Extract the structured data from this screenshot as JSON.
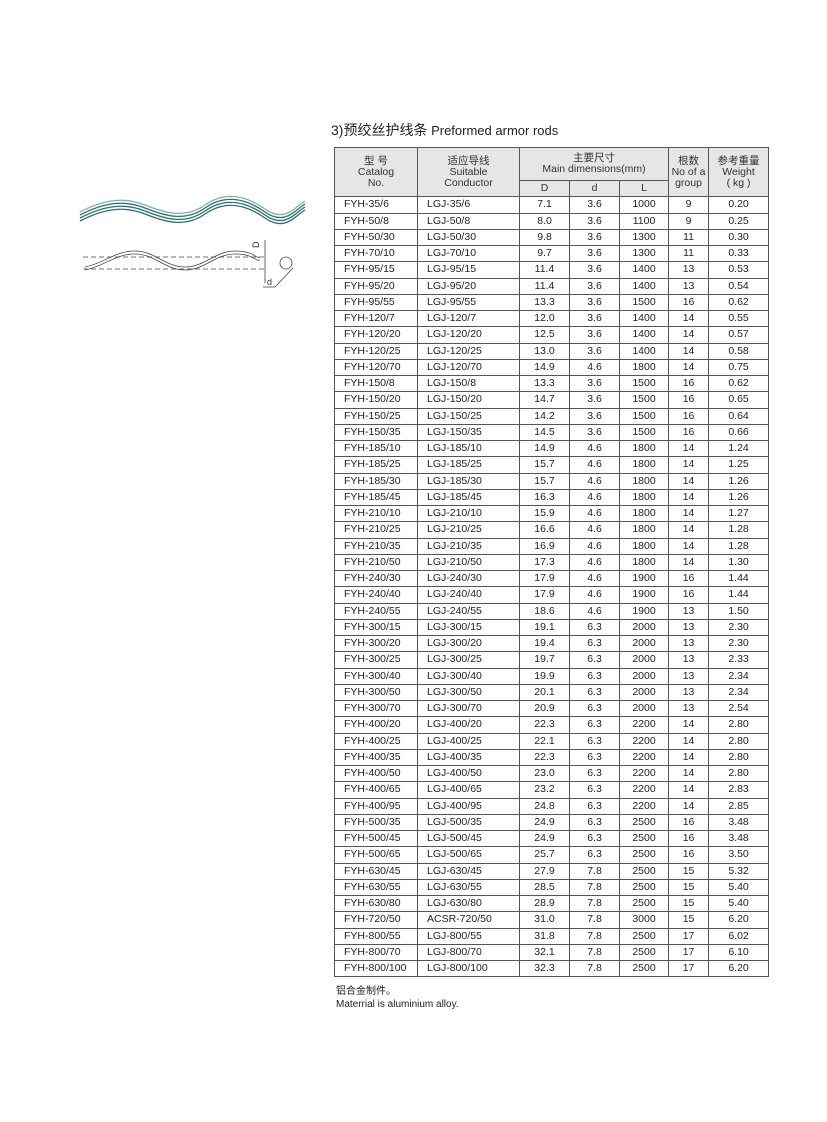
{
  "title": {
    "cn": "3)预绞丝护线条",
    "en": "Preformed armor rods"
  },
  "headers": {
    "catalog": [
      "型 号",
      "Catalog",
      "No."
    ],
    "conductor": [
      "适应导线",
      "Suitable",
      "Conductor"
    ],
    "dims": [
      "主要尺寸",
      "Main dimensions(mm)"
    ],
    "dim_cols": [
      "D",
      "d",
      "L"
    ],
    "count": [
      "根数",
      "No of a",
      "group"
    ],
    "weight": [
      "参考重量",
      "Weight",
      "( kg )"
    ]
  },
  "rows": [
    [
      "FYH-35/6",
      "LGJ-35/6",
      "7.1",
      "3.6",
      "1000",
      "9",
      "0.20"
    ],
    [
      "FYH-50/8",
      "LGJ-50/8",
      "8.0",
      "3.6",
      "1100",
      "9",
      "0.25"
    ],
    [
      "FYH-50/30",
      "LGJ-50/30",
      "9.8",
      "3.6",
      "1300",
      "11",
      "0.30"
    ],
    [
      "FYH-70/10",
      "LGJ-70/10",
      "9.7",
      "3.6",
      "1300",
      "11",
      "0.33"
    ],
    [
      "FYH-95/15",
      "LGJ-95/15",
      "11.4",
      "3.6",
      "1400",
      "13",
      "0.53"
    ],
    [
      "FYH-95/20",
      "LGJ-95/20",
      "11.4",
      "3.6",
      "1400",
      "13",
      "0.54"
    ],
    [
      "FYH-95/55",
      "LGJ-95/55",
      "13.3",
      "3.6",
      "1500",
      "16",
      "0.62"
    ],
    [
      "FYH-120/7",
      "LGJ-120/7",
      "12.0",
      "3.6",
      "1400",
      "14",
      "0.55"
    ],
    [
      "FYH-120/20",
      "LGJ-120/20",
      "12.5",
      "3.6",
      "1400",
      "14",
      "0.57"
    ],
    [
      "FYH-120/25",
      "LGJ-120/25",
      "13.0",
      "3.6",
      "1400",
      "14",
      "0.58"
    ],
    [
      "FYH-120/70",
      "LGJ-120/70",
      "14.9",
      "4.6",
      "1800",
      "14",
      "0.75"
    ],
    [
      "FYH-150/8",
      "LGJ-150/8",
      "13.3",
      "3.6",
      "1500",
      "16",
      "0.62"
    ],
    [
      "FYH-150/20",
      "LGJ-150/20",
      "14.7",
      "3.6",
      "1500",
      "16",
      "0.65"
    ],
    [
      "FYH-150/25",
      "LGJ-150/25",
      "14.2",
      "3.6",
      "1500",
      "16",
      "0.64"
    ],
    [
      "FYH-150/35",
      "LGJ-150/35",
      "14.5",
      "3.6",
      "1500",
      "16",
      "0.66"
    ],
    [
      "FYH-185/10",
      "LGJ-185/10",
      "14.9",
      "4.6",
      "1800",
      "14",
      "1.24"
    ],
    [
      "FYH-185/25",
      "LGJ-185/25",
      "15.7",
      "4.6",
      "1800",
      "14",
      "1.25"
    ],
    [
      "FYH-185/30",
      "LGJ-185/30",
      "15.7",
      "4.6",
      "1800",
      "14",
      "1.26"
    ],
    [
      "FYH-185/45",
      "LGJ-185/45",
      "16.3",
      "4.6",
      "1800",
      "14",
      "1.26"
    ],
    [
      "FYH-210/10",
      "LGJ-210/10",
      "15.9",
      "4.6",
      "1800",
      "14",
      "1.27"
    ],
    [
      "FYH-210/25",
      "LGJ-210/25",
      "16.6",
      "4.6",
      "1800",
      "14",
      "1.28"
    ],
    [
      "FYH-210/35",
      "LGJ-210/35",
      "16.9",
      "4.6",
      "1800",
      "14",
      "1.28"
    ],
    [
      "FYH-210/50",
      "LGJ-210/50",
      "17.3",
      "4.6",
      "1800",
      "14",
      "1.30"
    ],
    [
      "FYH-240/30",
      "LGJ-240/30",
      "17.9",
      "4.6",
      "1900",
      "16",
      "1.44"
    ],
    [
      "FYH-240/40",
      "LGJ-240/40",
      "17.9",
      "4.6",
      "1900",
      "16",
      "1.44"
    ],
    [
      "FYH-240/55",
      "LGJ-240/55",
      "18.6",
      "4.6",
      "1900",
      "13",
      "1.50"
    ],
    [
      "FYH-300/15",
      "LGJ-300/15",
      "19.1",
      "6.3",
      "2000",
      "13",
      "2.30"
    ],
    [
      "FYH-300/20",
      "LGJ-300/20",
      "19.4",
      "6.3",
      "2000",
      "13",
      "2.30"
    ],
    [
      "FYH-300/25",
      "LGJ-300/25",
      "19.7",
      "6.3",
      "2000",
      "13",
      "2.33"
    ],
    [
      "FYH-300/40",
      "LGJ-300/40",
      "19.9",
      "6.3",
      "2000",
      "13",
      "2.34"
    ],
    [
      "FYH-300/50",
      "LGJ-300/50",
      "20.1",
      "6.3",
      "2000",
      "13",
      "2.34"
    ],
    [
      "FYH-300/70",
      "LGJ-300/70",
      "20.9",
      "6.3",
      "2000",
      "13",
      "2.54"
    ],
    [
      "FYH-400/20",
      "LGJ-400/20",
      "22.3",
      "6.3",
      "2200",
      "14",
      "2.80"
    ],
    [
      "FYH-400/25",
      "LGJ-400/25",
      "22.1",
      "6.3",
      "2200",
      "14",
      "2.80"
    ],
    [
      "FYH-400/35",
      "LGJ-400/35",
      "22.3",
      "6.3",
      "2200",
      "14",
      "2.80"
    ],
    [
      "FYH-400/50",
      "LGJ-400/50",
      "23.0",
      "6.3",
      "2200",
      "14",
      "2.80"
    ],
    [
      "FYH-400/65",
      "LGJ-400/65",
      "23.2",
      "6.3",
      "2200",
      "14",
      "2.83"
    ],
    [
      "FYH-400/95",
      "LGJ-400/95",
      "24.8",
      "6.3",
      "2200",
      "14",
      "2.85"
    ],
    [
      "FYH-500/35",
      "LGJ-500/35",
      "24.9",
      "6.3",
      "2500",
      "16",
      "3.48"
    ],
    [
      "FYH-500/45",
      "LGJ-500/45",
      "24.9",
      "6.3",
      "2500",
      "16",
      "3.48"
    ],
    [
      "FYH-500/65",
      "LGJ-500/65",
      "25.7",
      "6.3",
      "2500",
      "16",
      "3.50"
    ],
    [
      "FYH-630/45",
      "LGJ-630/45",
      "27.9",
      "7.8",
      "2500",
      "15",
      "5.32"
    ],
    [
      "FYH-630/55",
      "LGJ-630/55",
      "28.5",
      "7.8",
      "2500",
      "15",
      "5.40"
    ],
    [
      "FYH-630/80",
      "LGJ-630/80",
      "28.9",
      "7.8",
      "2500",
      "15",
      "5.40"
    ],
    [
      "FYH-720/50",
      "ACSR-720/50",
      "31.0",
      "7.8",
      "3000",
      "15",
      "6.20"
    ],
    [
      "FYH-800/55",
      "LGJ-800/55",
      "31.8",
      "7.8",
      "2500",
      "17",
      "6.02"
    ],
    [
      "FYH-800/70",
      "LGJ-800/70",
      "32.1",
      "7.8",
      "2500",
      "17",
      "6.10"
    ],
    [
      "FYH-800/100",
      "LGJ-800/100",
      "32.3",
      "7.8",
      "2500",
      "17",
      "6.20"
    ]
  ],
  "figure": {
    "label_D": "D",
    "label_d": "d",
    "rod_color": "#2f6f6f"
  },
  "note": {
    "cn": "铝合金制件。",
    "en": "Materrial is aluminium alloy."
  }
}
